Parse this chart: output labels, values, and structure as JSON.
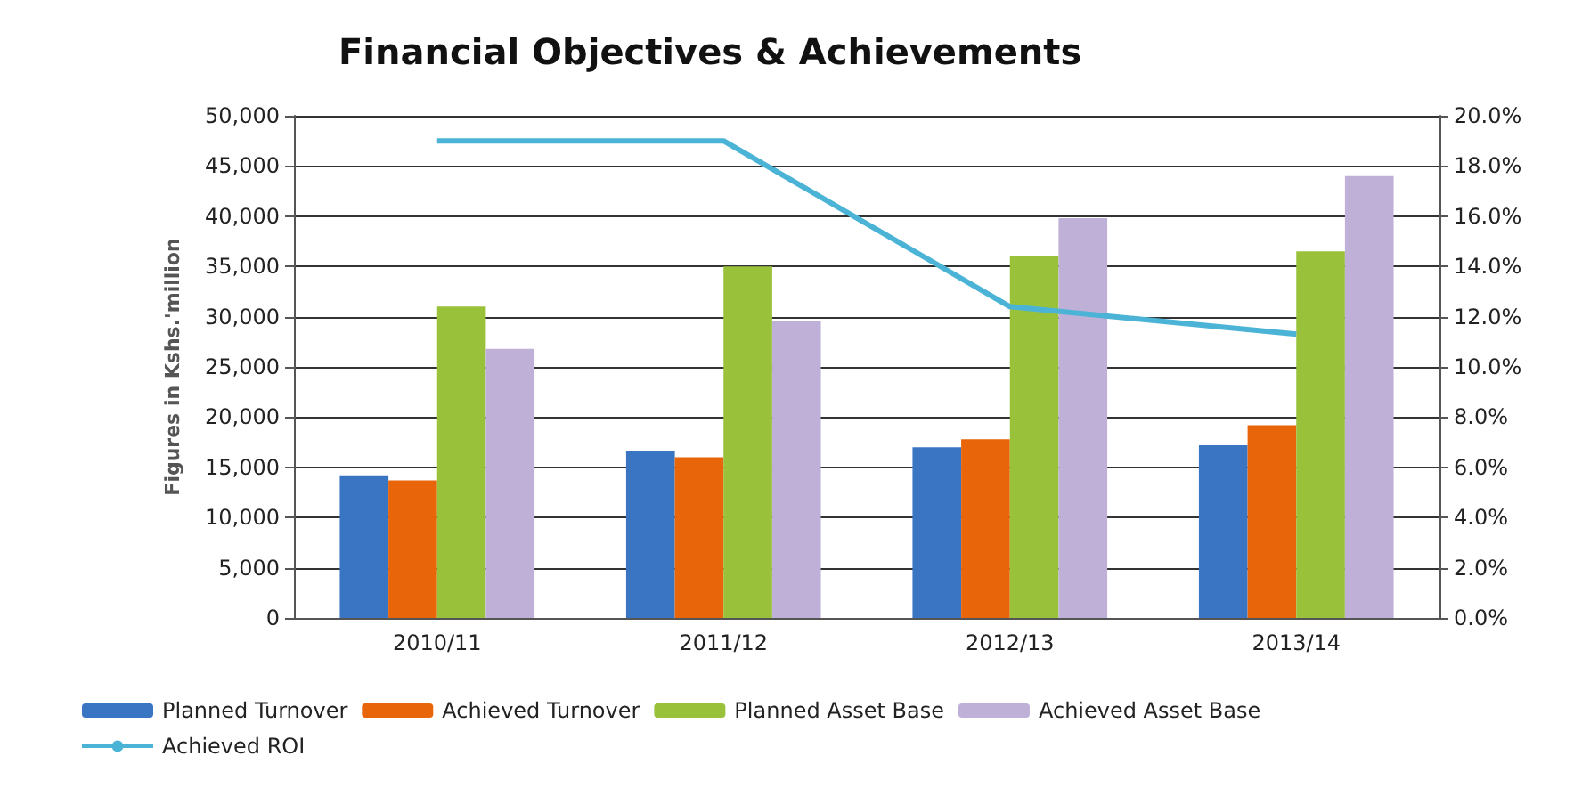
{
  "chart_data": {
    "type": "bar",
    "title": "Financial Objectives & Achievements",
    "ylabel": "Figures in Kshs.'million",
    "categories": [
      "2010/11",
      "2011/12",
      "2012/13",
      "2013/14"
    ],
    "series": [
      {
        "name": "Planned Turnover",
        "color": "#3a75c4",
        "values": [
          14200,
          16600,
          17000,
          17200
        ]
      },
      {
        "name": "Achieved Turnover",
        "color": "#e8650a",
        "values": [
          13700,
          16000,
          17800,
          19200
        ]
      },
      {
        "name": "Planned Asset Base",
        "color": "#99c23a",
        "values": [
          31000,
          35000,
          36000,
          36500
        ]
      },
      {
        "name": "Achieved Asset Base",
        "color": "#bfb0d8",
        "values": [
          26800,
          29600,
          39800,
          44000
        ]
      },
      {
        "name": "Achieved ROI",
        "type": "line",
        "axis": "y2",
        "color": "#4bb4d6",
        "values": [
          19.0,
          19.0,
          12.4,
          11.3
        ]
      }
    ],
    "ylim": [
      0,
      50000
    ],
    "yticks": [
      {
        "value": 0,
        "label": "0"
      },
      {
        "value": 5000,
        "label": "5,000"
      },
      {
        "value": 10000,
        "label": "10,000"
      },
      {
        "value": 15000,
        "label": "15,000"
      },
      {
        "value": 20000,
        "label": "20,000"
      },
      {
        "value": 25000,
        "label": "25,000"
      },
      {
        "value": 30000,
        "label": "30,000"
      },
      {
        "value": 35000,
        "label": "35,000"
      },
      {
        "value": 40000,
        "label": "40,000"
      },
      {
        "value": 45000,
        "label": "45,000"
      },
      {
        "value": 50000,
        "label": "50,000"
      }
    ],
    "y2lim": [
      0,
      20
    ],
    "y2ticks": [
      {
        "value": 0,
        "label": "0.0%"
      },
      {
        "value": 2,
        "label": "2.0%"
      },
      {
        "value": 4,
        "label": "4.0%"
      },
      {
        "value": 6,
        "label": "6.0%"
      },
      {
        "value": 8,
        "label": "8.0%"
      },
      {
        "value": 10,
        "label": "10.0%"
      },
      {
        "value": 12,
        "label": "12.0%"
      },
      {
        "value": 14,
        "label": "14.0%"
      },
      {
        "value": 16,
        "label": "16.0%"
      },
      {
        "value": 18,
        "label": "18.0%"
      },
      {
        "value": 20,
        "label": "20.0%"
      }
    ],
    "grid": "y",
    "legend": "bottom",
    "marker": "none"
  }
}
